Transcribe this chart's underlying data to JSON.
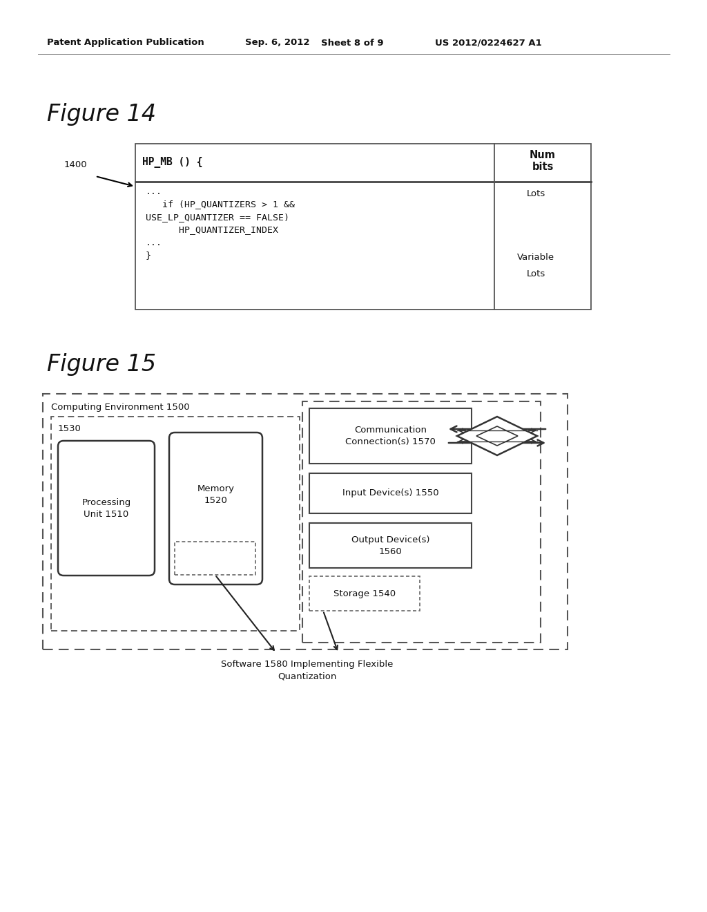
{
  "bg_color": "#ffffff",
  "header_text": "Patent Application Publication",
  "header_date": "Sep. 6, 2012",
  "header_sheet": "Sheet 8 of 9",
  "header_patent": "US 2012/0224627 A1",
  "fig14_title": "Figure 14",
  "fig14_label": "1400",
  "fig14_header_col1": "HP_MB () {",
  "fig14_header_col2": "Num\nbits",
  "fig14_code": "...\n   if (HP_QUANTIZERS > 1 &&\nUSE_LP_QUANTIZER == FALSE)\n      HP_QUANTIZER_INDEX\n...\n}",
  "fig14_lots_top": "Lots",
  "fig14_variable": "Variable",
  "fig14_lots_bot": "Lots",
  "fig15_title": "Figure 15",
  "fig15_env_label": "Computing Environment 1500",
  "fig15_inner_label": "1530",
  "fig15_proc": "Processing\nUnit 1510",
  "fig15_mem": "Memory\n1520",
  "fig15_comm": "Communication\nConnection(s) 1570",
  "fig15_input": "Input Device(s) 1550",
  "fig15_output": "Output Device(s)\n1560",
  "fig15_storage": "Storage 1540",
  "fig15_sw": "Software 1580 Implementing Flexible\nQuantization"
}
